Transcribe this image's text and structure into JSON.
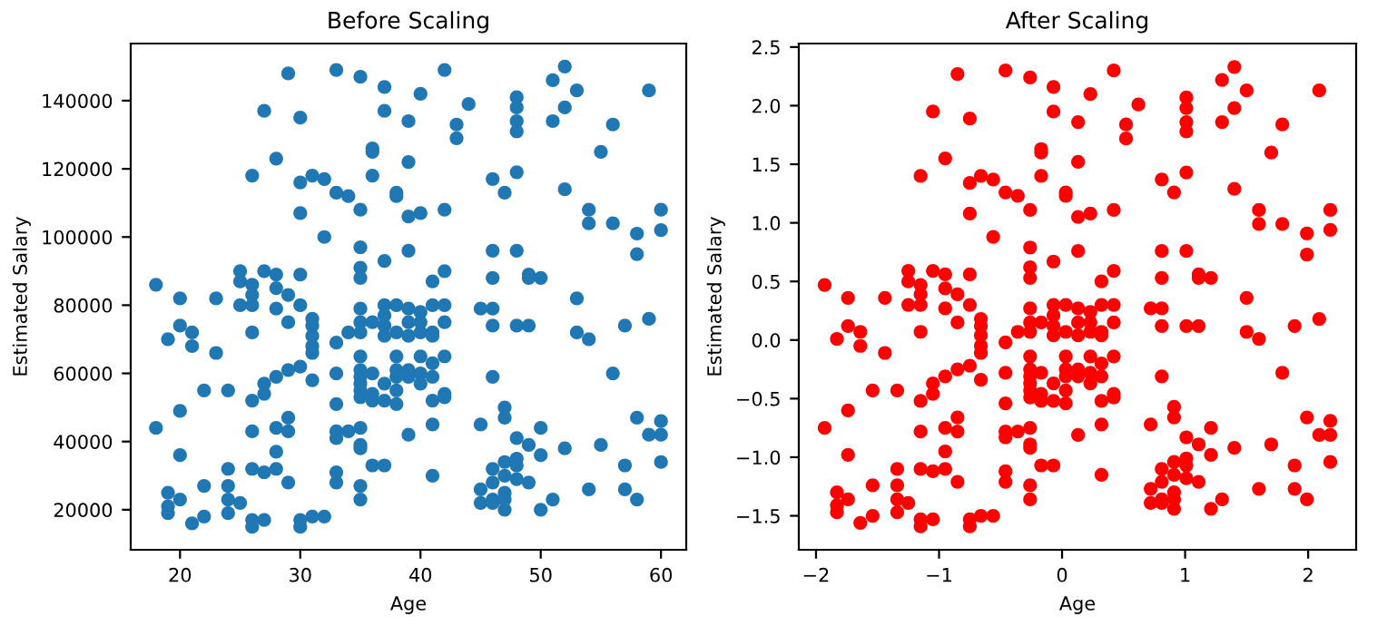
{
  "chart_data": [
    {
      "type": "scatter",
      "title": "Before Scaling",
      "xlabel": "Age",
      "ylabel": "Estimated Salary",
      "marker": "circle",
      "grid": false,
      "xlim": [
        15.9,
        62.1
      ],
      "ylim": [
        8250,
        156750
      ],
      "xticks": [
        20,
        30,
        40,
        50,
        60
      ],
      "yticks": [
        20000,
        40000,
        60000,
        80000,
        100000,
        120000,
        140000
      ],
      "series": [
        {
          "color": "#1f77b4",
          "x": [
            18,
            18,
            19,
            19,
            19,
            19,
            20,
            20,
            20,
            20,
            20,
            21,
            21,
            21,
            22,
            22,
            22,
            23,
            23,
            24,
            24,
            24,
            24,
            24,
            25,
            25,
            25,
            25,
            26,
            26,
            26,
            26,
            26,
            26,
            26,
            26,
            26,
            26,
            27,
            27,
            27,
            27,
            27,
            27,
            28,
            28,
            28,
            28,
            28,
            28,
            28,
            28,
            29,
            29,
            29,
            29,
            29,
            29,
            29,
            30,
            30,
            30,
            30,
            30,
            30,
            30,
            30,
            31,
            31,
            31,
            31,
            31,
            31,
            31,
            31,
            32,
            32,
            32,
            33,
            33,
            33,
            33,
            33,
            33,
            33,
            33,
            33,
            34,
            34,
            34,
            35,
            35,
            35,
            35,
            35,
            35,
            35,
            35,
            35,
            35,
            35,
            35,
            35,
            35,
            35,
            35,
            35,
            35,
            35,
            36,
            36,
            36,
            36,
            36,
            36,
            36,
            36,
            37,
            37,
            37,
            37,
            37,
            37,
            37,
            37,
            37,
            37,
            38,
            38,
            38,
            38,
            38,
            38,
            38,
            38,
            38,
            39,
            39,
            39,
            39,
            39,
            39,
            39,
            39,
            39,
            39,
            40,
            40,
            40,
            40,
            40,
            40,
            40,
            40,
            41,
            41,
            41,
            41,
            41,
            41,
            41,
            41,
            41,
            42,
            42,
            42,
            42,
            42,
            42,
            42,
            42,
            43,
            43,
            44,
            45,
            45,
            45,
            45,
            46,
            46,
            46,
            46,
            46,
            46,
            46,
            46,
            46,
            46,
            47,
            47,
            47,
            47,
            47,
            47,
            47,
            47,
            48,
            48,
            48,
            48,
            48,
            48,
            48,
            48,
            48,
            48,
            48,
            49,
            49,
            49,
            49,
            49,
            50,
            50,
            50,
            50,
            51,
            51,
            51,
            52,
            52,
            52,
            52,
            53,
            53,
            53,
            54,
            54,
            54,
            54,
            55,
            55,
            56,
            56,
            56,
            57,
            57,
            57,
            58,
            58,
            58,
            58,
            59,
            59,
            59,
            60,
            60,
            60,
            60,
            60
          ],
          "values": [
            86000,
            44000,
            70000,
            25000,
            21000,
            19000,
            82000,
            74000,
            49000,
            36000,
            23000,
            72000,
            68000,
            16000,
            55000,
            27000,
            18000,
            82000,
            66000,
            55000,
            32000,
            27000,
            23000,
            19000,
            90000,
            87000,
            80000,
            22000,
            86000,
            83000,
            80000,
            72000,
            52000,
            43000,
            32000,
            17000,
            15000,
            118000,
            137000,
            90000,
            57000,
            54000,
            31000,
            17000,
            123000,
            89000,
            85000,
            79000,
            59000,
            44000,
            37000,
            32000,
            148000,
            83000,
            75000,
            61000,
            47000,
            43000,
            28000,
            135000,
            116000,
            107000,
            89000,
            80000,
            62000,
            17000,
            15000,
            118000,
            76000,
            74000,
            71000,
            68000,
            66000,
            58000,
            18000,
            117000,
            100000,
            18000,
            149000,
            113000,
            69000,
            60000,
            51000,
            43000,
            41000,
            31000,
            28000,
            112000,
            72000,
            43000,
            147000,
            108000,
            97000,
            91000,
            88000,
            79000,
            75000,
            72000,
            65000,
            61000,
            59000,
            57000,
            55000,
            53000,
            44000,
            39000,
            38000,
            27000,
            23000,
            126000,
            125000,
            118000,
            75000,
            60000,
            54000,
            52000,
            33000,
            144000,
            137000,
            93000,
            80000,
            77000,
            74000,
            71000,
            57000,
            52000,
            33000,
            113000,
            112000,
            80000,
            72000,
            65000,
            61000,
            59000,
            55000,
            51000,
            134000,
            122000,
            106000,
            96000,
            79000,
            75000,
            71000,
            61000,
            59000,
            42000,
            142000,
            107000,
            78000,
            75000,
            72000,
            65000,
            60000,
            57000,
            87000,
            80000,
            72000,
            71000,
            63000,
            59000,
            52000,
            45000,
            30000,
            149000,
            108000,
            90000,
            80000,
            75000,
            65000,
            54000,
            53000,
            133000,
            129000,
            139000,
            79000,
            45000,
            26000,
            22000,
            117000,
            96000,
            88000,
            79000,
            74000,
            59000,
            32000,
            28000,
            23000,
            22000,
            113000,
            50000,
            47000,
            34000,
            30000,
            25000,
            23000,
            20000,
            141000,
            138000,
            134000,
            131000,
            119000,
            96000,
            74000,
            41000,
            35000,
            33000,
            29000,
            89000,
            88000,
            74000,
            39000,
            28000,
            88000,
            44000,
            36000,
            20000,
            146000,
            134000,
            23000,
            150000,
            138000,
            114000,
            38000,
            143000,
            82000,
            72000,
            108000,
            104000,
            70000,
            26000,
            125000,
            39000,
            133000,
            104000,
            60000,
            74000,
            33000,
            26000,
            101000,
            95000,
            47000,
            23000,
            143000,
            76000,
            42000,
            108000,
            102000,
            46000,
            42000,
            34000
          ]
        }
      ]
    },
    {
      "type": "scatter",
      "title": "After Scaling",
      "xlabel": "Age",
      "ylabel": "Estimated Salary",
      "marker": "circle",
      "grid": false,
      "xlim": [
        -2.14,
        2.39
      ],
      "ylim": [
        -1.79,
        2.53
      ],
      "xticks": [
        {
          "value": -2,
          "label": "−2"
        },
        {
          "value": -1,
          "label": "−1"
        },
        0,
        1,
        2
      ],
      "yticks": [
        {
          "value": -1.5,
          "label": "−1.5"
        },
        {
          "value": -1.0,
          "label": "−1.0"
        },
        {
          "value": -0.5,
          "label": "−0.5"
        },
        {
          "value": 0,
          "label": "0.0"
        },
        0.5,
        {
          "value": 1,
          "label": "1.0"
        },
        1.5,
        {
          "value": 2,
          "label": "2.0"
        },
        2.5
      ],
      "series": [
        {
          "color": "#ff0000",
          "x": [
            -1.93,
            -1.93,
            -1.83,
            -1.83,
            -1.83,
            -1.83,
            -1.74,
            -1.74,
            -1.74,
            -1.74,
            -1.74,
            -1.64,
            -1.64,
            -1.64,
            -1.54,
            -1.54,
            -1.54,
            -1.44,
            -1.44,
            -1.34,
            -1.34,
            -1.34,
            -1.34,
            -1.34,
            -1.25,
            -1.25,
            -1.25,
            -1.25,
            -1.15,
            -1.15,
            -1.15,
            -1.15,
            -1.15,
            -1.15,
            -1.15,
            -1.15,
            -1.15,
            -1.15,
            -1.05,
            -1.05,
            -1.05,
            -1.05,
            -1.05,
            -1.05,
            -0.95,
            -0.95,
            -0.95,
            -0.95,
            -0.95,
            -0.95,
            -0.95,
            -0.95,
            -0.85,
            -0.85,
            -0.85,
            -0.85,
            -0.85,
            -0.85,
            -0.85,
            -0.75,
            -0.75,
            -0.75,
            -0.75,
            -0.75,
            -0.75,
            -0.75,
            -0.75,
            -0.66,
            -0.66,
            -0.66,
            -0.66,
            -0.66,
            -0.66,
            -0.66,
            -0.66,
            -0.56,
            -0.56,
            -0.56,
            -0.46,
            -0.46,
            -0.46,
            -0.46,
            -0.46,
            -0.46,
            -0.46,
            -0.46,
            -0.46,
            -0.36,
            -0.36,
            -0.36,
            -0.26,
            -0.26,
            -0.26,
            -0.26,
            -0.26,
            -0.26,
            -0.26,
            -0.26,
            -0.26,
            -0.26,
            -0.26,
            -0.26,
            -0.26,
            -0.26,
            -0.26,
            -0.26,
            -0.26,
            -0.26,
            -0.26,
            -0.17,
            -0.17,
            -0.17,
            -0.17,
            -0.17,
            -0.17,
            -0.17,
            -0.17,
            -0.07,
            -0.07,
            -0.07,
            -0.07,
            -0.07,
            -0.07,
            -0.07,
            -0.07,
            -0.07,
            -0.07,
            0.03,
            0.03,
            0.03,
            0.03,
            0.03,
            0.03,
            0.03,
            0.03,
            0.03,
            0.13,
            0.13,
            0.13,
            0.13,
            0.13,
            0.13,
            0.13,
            0.13,
            0.13,
            0.13,
            0.23,
            0.23,
            0.23,
            0.23,
            0.23,
            0.23,
            0.23,
            0.23,
            0.32,
            0.32,
            0.32,
            0.32,
            0.32,
            0.32,
            0.32,
            0.32,
            0.32,
            0.42,
            0.42,
            0.42,
            0.42,
            0.42,
            0.42,
            0.42,
            0.42,
            0.52,
            0.52,
            0.62,
            0.72,
            0.72,
            0.72,
            0.72,
            0.81,
            0.81,
            0.81,
            0.81,
            0.81,
            0.81,
            0.81,
            0.81,
            0.81,
            0.81,
            0.91,
            0.91,
            0.91,
            0.91,
            0.91,
            0.91,
            0.91,
            0.91,
            1.01,
            1.01,
            1.01,
            1.01,
            1.01,
            1.01,
            1.01,
            1.01,
            1.01,
            1.01,
            1.01,
            1.11,
            1.11,
            1.11,
            1.11,
            1.11,
            1.21,
            1.21,
            1.21,
            1.21,
            1.3,
            1.3,
            1.3,
            1.4,
            1.4,
            1.4,
            1.4,
            1.5,
            1.5,
            1.5,
            1.6,
            1.6,
            1.6,
            1.6,
            1.7,
            1.7,
            1.79,
            1.79,
            1.79,
            1.89,
            1.89,
            1.89,
            1.99,
            1.99,
            1.99,
            1.99,
            2.09,
            2.09,
            2.09,
            2.18,
            2.18,
            2.18,
            2.18,
            2.18
          ],
          "values": [
            0.47,
            -0.75,
            0.01,
            -1.3,
            -1.41,
            -1.47,
            0.36,
            0.12,
            -0.6,
            -0.98,
            -1.36,
            0.07,
            -0.05,
            -1.56,
            -0.43,
            -1.24,
            -1.5,
            0.36,
            -0.11,
            -0.43,
            -1.1,
            -1.24,
            -1.36,
            -1.47,
            0.59,
            0.5,
            0.3,
            -1.39,
            0.47,
            0.39,
            0.3,
            0.07,
            -0.52,
            -0.78,
            -1.1,
            -1.53,
            -1.59,
            1.4,
            1.95,
            0.59,
            -0.37,
            -0.46,
            -1.12,
            -1.53,
            1.55,
            0.56,
            0.44,
            0.27,
            -0.31,
            -0.75,
            -0.95,
            -1.1,
            2.27,
            0.39,
            0.15,
            -0.25,
            -0.66,
            -0.78,
            -1.21,
            1.89,
            1.34,
            1.08,
            0.56,
            0.3,
            -0.22,
            -1.53,
            -1.59,
            1.4,
            0.18,
            0.12,
            0.04,
            -0.05,
            -0.11,
            -0.34,
            -1.5,
            1.37,
            0.88,
            -1.5,
            2.3,
            1.26,
            -0.02,
            -0.28,
            -0.54,
            -0.78,
            -0.83,
            -1.12,
            -1.21,
            1.23,
            0.07,
            -0.78,
            2.24,
            1.11,
            0.79,
            0.62,
            0.53,
            0.27,
            0.15,
            0.07,
            -0.14,
            -0.25,
            -0.31,
            -0.37,
            -0.43,
            -0.49,
            -0.75,
            -0.89,
            -0.92,
            -1.24,
            -1.36,
            1.63,
            1.6,
            1.4,
            0.15,
            -0.28,
            -0.46,
            -0.52,
            -1.07,
            2.16,
            1.95,
            0.67,
            0.3,
            0.21,
            0.12,
            0.04,
            -0.37,
            -0.52,
            -1.07,
            1.26,
            1.23,
            0.3,
            0.07,
            -0.14,
            -0.25,
            -0.31,
            -0.43,
            -0.54,
            1.86,
            1.52,
            1.05,
            0.76,
            0.27,
            0.15,
            0.04,
            -0.25,
            -0.31,
            -0.81,
            2.1,
            1.08,
            0.24,
            0.15,
            0.07,
            -0.14,
            -0.28,
            -0.37,
            0.5,
            0.3,
            0.07,
            0.04,
            -0.2,
            -0.31,
            -0.52,
            -0.72,
            -1.15,
            2.3,
            1.11,
            0.59,
            0.3,
            0.15,
            -0.14,
            -0.46,
            -0.49,
            1.84,
            1.72,
            2.01,
            0.27,
            -0.72,
            -1.27,
            -1.39,
            1.37,
            0.76,
            0.53,
            0.27,
            0.12,
            -0.31,
            -1.1,
            -1.21,
            -1.36,
            -1.39,
            1.26,
            -0.57,
            -0.66,
            -1.04,
            -1.15,
            -1.3,
            -1.36,
            -1.44,
            2.07,
            1.98,
            1.86,
            1.78,
            1.43,
            0.76,
            0.12,
            -0.83,
            -1.01,
            -1.07,
            -1.18,
            0.56,
            0.53,
            0.12,
            -0.89,
            -1.21,
            0.53,
            -0.75,
            -0.98,
            -1.44,
            2.22,
            1.86,
            -1.36,
            2.33,
            1.98,
            1.29,
            -0.92,
            2.13,
            0.36,
            0.07,
            1.11,
            0.99,
            0.01,
            -1.27,
            1.6,
            -0.89,
            1.84,
            0.99,
            -0.28,
            0.12,
            -1.07,
            -1.27,
            0.91,
            0.73,
            -0.66,
            -1.36,
            2.13,
            0.18,
            -0.81,
            1.11,
            0.94,
            -0.69,
            -0.81,
            -1.04
          ]
        }
      ]
    }
  ]
}
